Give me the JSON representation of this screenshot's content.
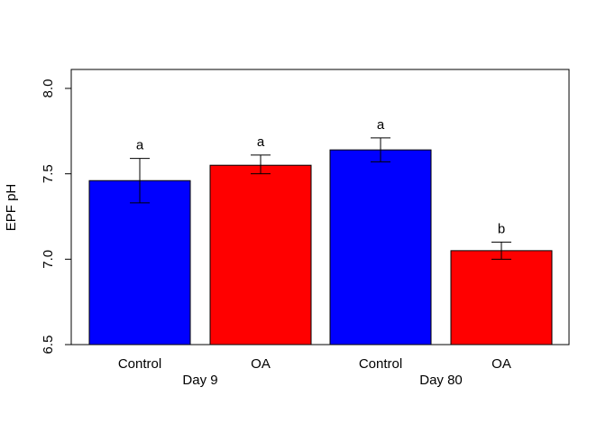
{
  "chart_data": {
    "type": "bar",
    "ylabel": "EPF pH",
    "ylim": [
      6.5,
      8.1
    ],
    "yticks": [
      "6.5",
      "7.0",
      "7.5",
      "8.0"
    ],
    "bars": [
      {
        "category": "Control",
        "group": "Day 9",
        "value": 7.46,
        "err_low": 7.33,
        "err_high": 7.59,
        "letter": "a",
        "color": "#0000ff"
      },
      {
        "category": "OA",
        "group": "Day 9",
        "value": 7.55,
        "err_low": 7.5,
        "err_high": 7.61,
        "letter": "a",
        "color": "#ff0000"
      },
      {
        "category": "Control",
        "group": "Day 80",
        "value": 7.64,
        "err_low": 7.57,
        "err_high": 7.71,
        "letter": "a",
        "color": "#0000ff"
      },
      {
        "category": "OA",
        "group": "Day 80",
        "value": 7.05,
        "err_low": 7.0,
        "err_high": 7.1,
        "letter": "b",
        "color": "#ff0000"
      }
    ],
    "groups": [
      "Day 9",
      "Day 80"
    ],
    "grid": false,
    "legend": "none"
  }
}
